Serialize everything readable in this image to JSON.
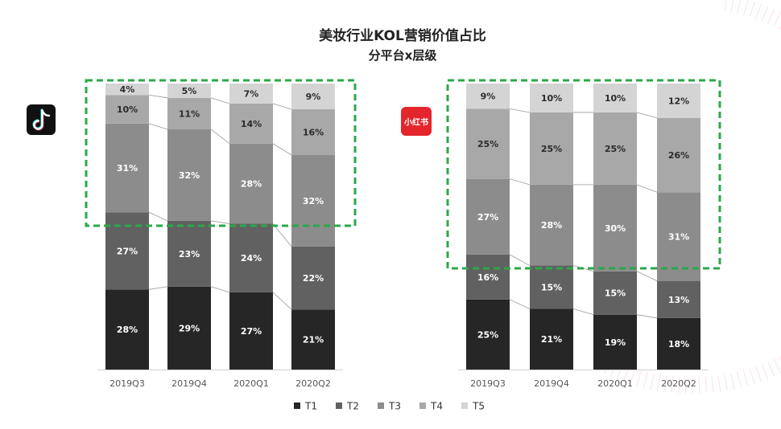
{
  "title_line1": "美妆行业KOL营销价值占比",
  "title_line2": "分平台x层级",
  "platforms": [
    {
      "logo_icon": "tiktok-icon",
      "logo_color": "#111111"
    },
    {
      "logo_icon": "xiaohongshu-icon",
      "logo_text": "小红书",
      "logo_color": "#e4262c"
    }
  ],
  "legend": [
    "T1",
    "T2",
    "T3",
    "T4",
    "T5"
  ],
  "colors": {
    "T1": "#262626",
    "T2": "#616161",
    "T3": "#8c8c8c",
    "T4": "#a8a8a8",
    "T5": "#d4d4d4",
    "highlight": "#2aa84a",
    "accent": "#e65a6b"
  },
  "chart_data": [
    {
      "type": "bar",
      "stacked": true,
      "platform": "tiktok",
      "categories": [
        "2019Q3",
        "2019Q4",
        "2020Q1",
        "2020Q2"
      ],
      "series": [
        {
          "name": "T1",
          "values": [
            28,
            29,
            27,
            21
          ]
        },
        {
          "name": "T2",
          "values": [
            27,
            23,
            24,
            22
          ]
        },
        {
          "name": "T3",
          "values": [
            31,
            32,
            28,
            32
          ]
        },
        {
          "name": "T4",
          "values": [
            10,
            11,
            14,
            16
          ]
        },
        {
          "name": "T5",
          "values": [
            4,
            5,
            7,
            9
          ]
        }
      ],
      "labels": {
        "T1": [
          "28%",
          "29%",
          "27%",
          "21%"
        ],
        "T2": [
          "27%",
          "23%",
          "24%",
          "22%"
        ],
        "T3": [
          "31%",
          "32%",
          "28%",
          "32%"
        ],
        "T4": [
          "10%",
          "11%",
          "14%",
          "16%"
        ],
        "T5": [
          "4%",
          "5%",
          "7%",
          "9%"
        ]
      },
      "ylim": [
        0,
        100
      ],
      "legend_position": "bottom"
    },
    {
      "type": "bar",
      "stacked": true,
      "platform": "xiaohongshu",
      "categories": [
        "2019Q3",
        "2019Q4",
        "2020Q1",
        "2020Q2"
      ],
      "series": [
        {
          "name": "T1",
          "values": [
            25,
            21,
            19,
            18
          ]
        },
        {
          "name": "T2",
          "values": [
            16,
            15,
            15,
            13
          ]
        },
        {
          "name": "T3",
          "values": [
            27,
            28,
            30,
            31
          ]
        },
        {
          "name": "T4",
          "values": [
            25,
            25,
            25,
            26
          ]
        },
        {
          "name": "T5",
          "values": [
            9,
            10,
            10,
            12
          ]
        }
      ],
      "labels": {
        "T1": [
          "25%",
          "21%",
          "19%",
          "18%"
        ],
        "T2": [
          "16%",
          "15%",
          "15%",
          "13%"
        ],
        "T3": [
          "27%",
          "28%",
          "30%",
          "31%"
        ],
        "T4": [
          "25%",
          "25%",
          "25%",
          "26%"
        ],
        "T5": [
          "9%",
          "10%",
          "10%",
          "12%"
        ]
      },
      "ylim": [
        0,
        100
      ],
      "legend_position": "bottom"
    }
  ]
}
